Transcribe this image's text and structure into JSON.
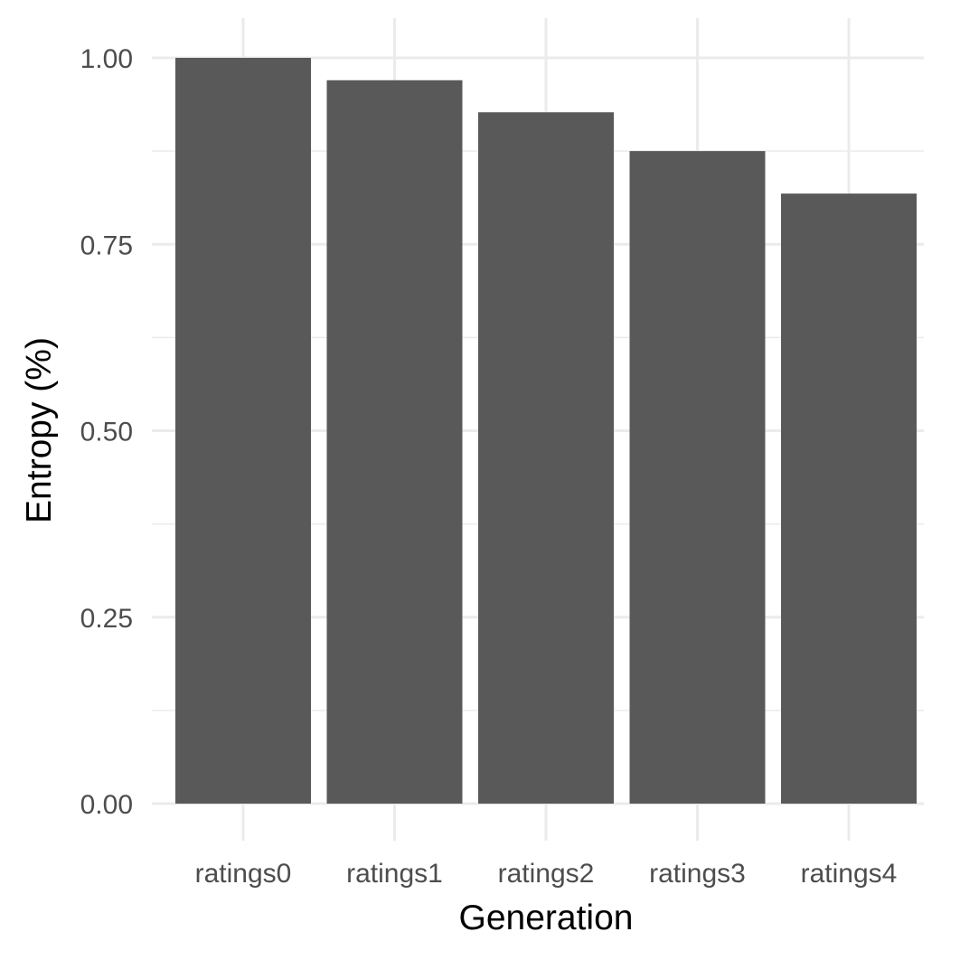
{
  "chart_data": {
    "type": "bar",
    "title": "",
    "xlabel": "Generation",
    "ylabel": "Entropy (%)",
    "categories": [
      "ratings0",
      "ratings1",
      "ratings2",
      "ratings3",
      "ratings4"
    ],
    "values": [
      1.0,
      0.97,
      0.927,
      0.875,
      0.818
    ],
    "ylim": [
      0,
      1.0
    ],
    "y_ticks": [
      "0.00",
      "0.25",
      "0.50",
      "0.75",
      "1.00"
    ],
    "y_tick_values": [
      0,
      0.25,
      0.5,
      0.75,
      1.0
    ],
    "y_minor_values": [
      0.125,
      0.375,
      0.625,
      0.875
    ],
    "grid": true,
    "legend": "none",
    "colors": {
      "bar": "#595959",
      "grid": "#ebebeb",
      "tick_text": "#4d4d4d",
      "title_text": "#000000",
      "background": "#ffffff"
    }
  }
}
